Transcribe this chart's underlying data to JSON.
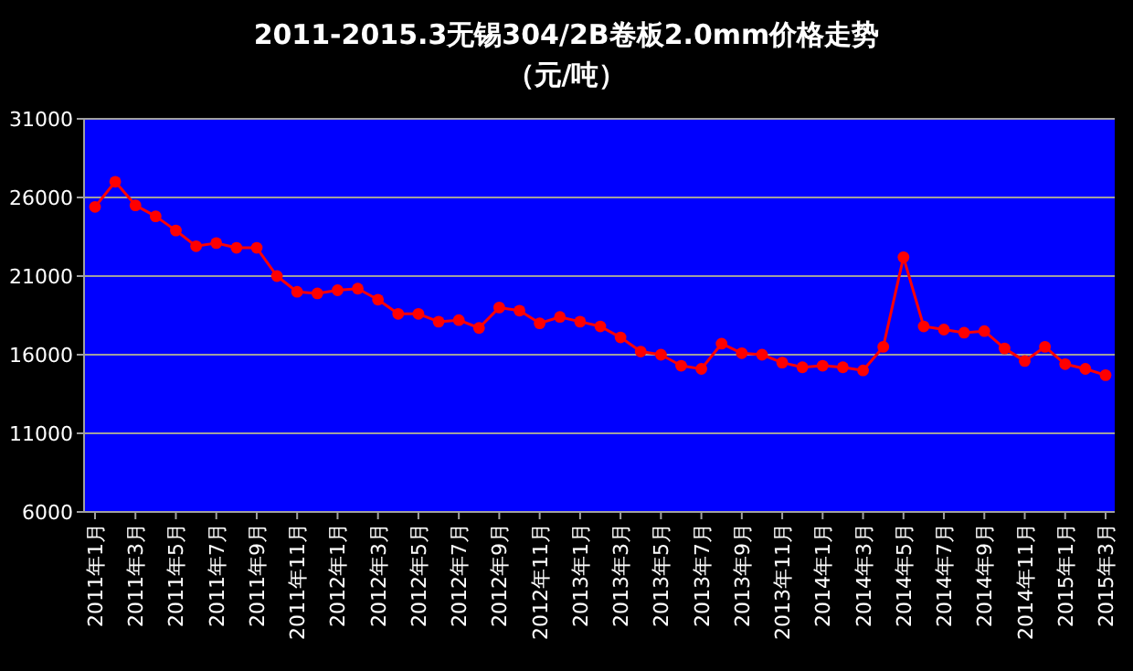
{
  "chart_data": {
    "type": "line",
    "title": "2011-2015.3无锡304/2B卷板2.0mm价格走势",
    "subtitle": "（元/吨）",
    "categories": [
      "2011年1月",
      null,
      "2011年3月",
      null,
      "2011年5月",
      null,
      "2011年7月",
      null,
      "2011年9月",
      null,
      "2011年11月",
      null,
      "2012年1月",
      null,
      "2012年3月",
      null,
      "2012年5月",
      null,
      "2012年7月",
      null,
      "2012年9月",
      null,
      "2012年11月",
      null,
      "2013年1月",
      null,
      "2013年3月",
      null,
      "2013年5月",
      null,
      "2013年7月",
      null,
      "2013年9月",
      null,
      "2013年11月",
      null,
      "2014年1月",
      null,
      "2014年3月",
      null,
      "2014年5月",
      null,
      "2014年7月",
      null,
      "2014年9月",
      null,
      "2014年11月",
      null,
      "2015年1月",
      null,
      "2015年3月"
    ],
    "series": [
      {
        "color": "#ff0000",
        "values": [
          25400,
          27000,
          25500,
          24800,
          23900,
          22900,
          23100,
          22800,
          22800,
          21000,
          20000,
          19900,
          20100,
          20200,
          19500,
          18600,
          18600,
          18100,
          18200,
          17700,
          19000,
          18800,
          18000,
          18400,
          18100,
          17800,
          17100,
          16200,
          16000,
          15300,
          15100,
          16700,
          16100,
          16000,
          15500,
          15200,
          15300,
          15200,
          15000,
          16500,
          22200,
          17800,
          17600,
          17400,
          17500,
          16400,
          15600,
          16500,
          15400,
          15100,
          14700
        ]
      }
    ],
    "ylim": [
      6000,
      31000
    ],
    "yticks": [
      6000,
      11000,
      16000,
      21000,
      26000,
      31000
    ],
    "grid": "y",
    "marker": "circle",
    "line_style": "solid"
  }
}
